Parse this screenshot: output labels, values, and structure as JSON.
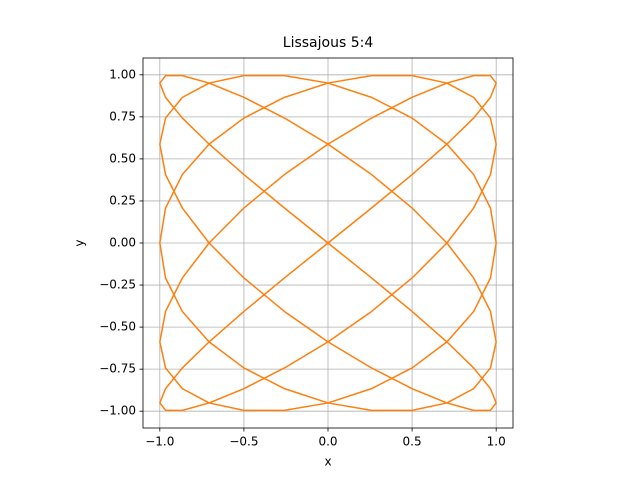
{
  "chart_data": {
    "type": "line",
    "title": "Lissajous 5:4",
    "xlabel": "x",
    "ylabel": "y",
    "color": "#ff7f0e",
    "grid": true,
    "xlim": [
      -1.1,
      1.1
    ],
    "ylim": [
      -1.1,
      1.1
    ],
    "xticks": [
      {
        "value": -1,
        "label": "−1.0"
      },
      {
        "value": -0.5,
        "label": "−0.5"
      },
      {
        "value": 0,
        "label": "0.0"
      },
      {
        "value": 0.5,
        "label": "0.5"
      },
      {
        "value": 1,
        "label": "1.0"
      }
    ],
    "yticks": [
      {
        "value": -1,
        "label": "−1.00"
      },
      {
        "value": -0.75,
        "label": "−0.75"
      },
      {
        "value": -0.5,
        "label": "−0.50"
      },
      {
        "value": -0.25,
        "label": "−0.25"
      },
      {
        "value": 0,
        "label": "0.00"
      },
      {
        "value": 0.25,
        "label": "0.25"
      },
      {
        "value": 0.5,
        "label": "0.50"
      },
      {
        "value": 0.75,
        "label": "0.75"
      },
      {
        "value": 1,
        "label": "1.00"
      }
    ],
    "x": [
      0,
      0.259,
      0.5,
      0.707,
      0.866,
      0.966,
      1,
      0.966,
      0.866,
      0.707,
      0.5,
      0.259,
      0,
      -0.259,
      -0.5,
      -0.707,
      -0.866,
      -0.966,
      -1,
      -0.966,
      -0.866,
      -0.707,
      -0.5,
      -0.259,
      0,
      0.259,
      0.5,
      0.707,
      0.866,
      0.966,
      1,
      0.966,
      0.866,
      0.707,
      0.5,
      0.259,
      0,
      -0.259,
      -0.5,
      -0.707,
      -0.866,
      -0.966,
      -1,
      -0.966,
      -0.866,
      -0.707,
      -0.5,
      -0.259,
      0,
      0.259,
      0.5,
      0.707,
      0.866,
      0.966,
      1,
      0.966,
      0.866,
      0.707,
      0.5,
      0.259,
      0,
      -0.259,
      -0.5,
      -0.707,
      -0.866,
      -0.966,
      -1,
      -0.966,
      -0.866,
      -0.707,
      -0.5,
      -0.259,
      0,
      0.259,
      0.5,
      0.707,
      0.866,
      0.966,
      1,
      0.966,
      0.866,
      0.707,
      0.5,
      0.259,
      0,
      -0.259,
      -0.5,
      -0.707,
      -0.866,
      -0.966,
      -1,
      -0.966,
      -0.866,
      -0.707,
      -0.5,
      -0.259,
      0,
      0.259,
      0.5,
      0.707,
      0.866,
      0.966,
      1,
      0.966,
      0.866,
      0.707,
      0.5,
      0.259,
      0,
      -0.259,
      -0.5,
      -0.707,
      -0.866,
      -0.966,
      -1,
      -0.966,
      -0.866,
      -0.707,
      -0.5,
      -0.259,
      0
    ],
    "values": [
      0,
      0.208,
      0.407,
      0.588,
      0.743,
      0.866,
      0.951,
      0.995,
      0.995,
      0.951,
      0.866,
      0.743,
      0.588,
      0.407,
      0.208,
      0,
      -0.208,
      -0.407,
      -0.588,
      -0.743,
      -0.866,
      -0.951,
      -0.995,
      -0.995,
      -0.951,
      -0.866,
      -0.743,
      -0.588,
      -0.407,
      -0.208,
      0,
      0.208,
      0.407,
      0.588,
      0.743,
      0.866,
      0.951,
      0.995,
      0.995,
      0.951,
      0.866,
      0.743,
      0.588,
      0.407,
      0.208,
      0,
      -0.208,
      -0.407,
      -0.588,
      -0.743,
      -0.866,
      -0.951,
      -0.995,
      -0.995,
      -0.951,
      -0.866,
      -0.743,
      -0.588,
      -0.407,
      -0.208,
      0,
      0.208,
      0.407,
      0.588,
      0.743,
      0.866,
      0.951,
      0.995,
      0.995,
      0.951,
      0.866,
      0.743,
      0.588,
      0.407,
      0.208,
      0,
      -0.208,
      -0.407,
      -0.588,
      -0.743,
      -0.866,
      -0.951,
      -0.995,
      -0.995,
      -0.951,
      -0.866,
      -0.743,
      -0.588,
      -0.407,
      -0.208,
      0,
      0.208,
      0.407,
      0.588,
      0.743,
      0.866,
      0.951,
      0.995,
      0.995,
      0.951,
      0.866,
      0.743,
      0.588,
      0.407,
      0.208,
      0,
      -0.208,
      -0.407,
      -0.588,
      -0.743,
      -0.866,
      -0.951,
      -0.995,
      -0.995,
      -0.951,
      -0.866,
      -0.743,
      -0.588,
      -0.407,
      -0.208,
      0
    ]
  }
}
